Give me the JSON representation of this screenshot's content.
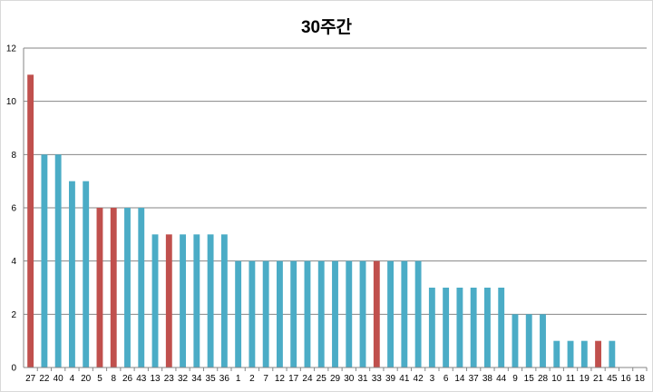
{
  "chart_data": {
    "type": "bar",
    "title": "30주간",
    "xlabel": "",
    "ylabel": "",
    "ylim": [
      0,
      12
    ],
    "yticks": [
      "0",
      "2",
      "4",
      "6",
      "8",
      "10",
      "12"
    ],
    "grid": true,
    "legend": "none",
    "categories": [
      "27",
      "22",
      "40",
      "4",
      "20",
      "5",
      "8",
      "26",
      "43",
      "13",
      "23",
      "32",
      "34",
      "35",
      "36",
      "1",
      "2",
      "7",
      "12",
      "17",
      "24",
      "25",
      "29",
      "30",
      "31",
      "33",
      "39",
      "41",
      "42",
      "3",
      "6",
      "14",
      "37",
      "38",
      "44",
      "9",
      "15",
      "28",
      "10",
      "11",
      "19",
      "21",
      "45",
      "16",
      "18"
    ],
    "values": [
      11,
      8,
      8,
      7,
      7,
      6,
      6,
      6,
      6,
      5,
      5,
      5,
      5,
      5,
      5,
      4,
      4,
      4,
      4,
      4,
      4,
      4,
      4,
      4,
      4,
      4,
      4,
      4,
      4,
      3,
      3,
      3,
      3,
      3,
      3,
      2,
      2,
      2,
      1,
      1,
      1,
      1,
      1,
      0,
      0
    ],
    "highlighted": [
      "27",
      "5",
      "8",
      "23",
      "33",
      "21"
    ],
    "colors": {
      "default": "#4bacc6",
      "highlight": "#c0504d",
      "gridline": "#868686",
      "axis": "#868686"
    }
  }
}
